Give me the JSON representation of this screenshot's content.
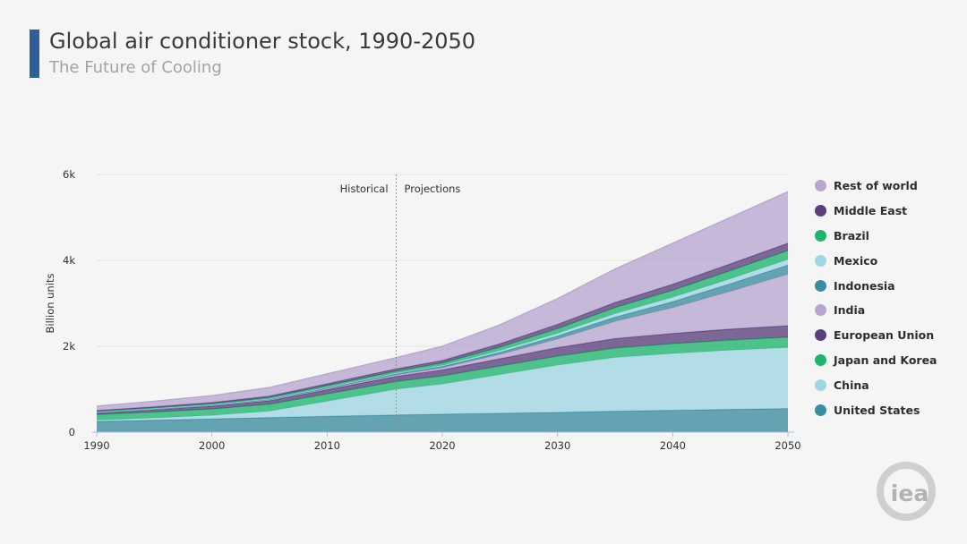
{
  "header": {
    "title": "Global air conditioner stock, 1990-2050",
    "subtitle": "The Future of Cooling"
  },
  "logo": {
    "text": "iea",
    "icon": "iea-logo-icon"
  },
  "chart_data": {
    "type": "area",
    "stacked": true,
    "x": [
      1990,
      1995,
      2000,
      2005,
      2010,
      2016,
      2020,
      2025,
      2030,
      2035,
      2040,
      2045,
      2050
    ],
    "xticks": [
      "1990",
      "2000",
      "2010",
      "2020",
      "2030",
      "2040",
      "2050"
    ],
    "yticks": [
      "0",
      "2k",
      "4k",
      "6k"
    ],
    "ylabel": "Billion units",
    "xlim": [
      1990,
      2050
    ],
    "ylim": [
      0,
      6000
    ],
    "grid": true,
    "legend_position": "right",
    "annotations": {
      "divider_year": 2016,
      "left_label": "Historical",
      "right_label": "Projections"
    },
    "series": [
      {
        "name": "United States",
        "color": "#3c8c9f",
        "values": [
          250,
          280,
          310,
          340,
          370,
          400,
          420,
          440,
          460,
          490,
          510,
          530,
          550
        ]
      },
      {
        "name": "China",
        "color": "#9fd6e3",
        "values": [
          30,
          50,
          80,
          150,
          350,
          600,
          700,
          900,
          1100,
          1250,
          1320,
          1380,
          1420
        ]
      },
      {
        "name": "Japan and Korea",
        "color": "#1fb46b",
        "values": [
          130,
          140,
          150,
          160,
          170,
          180,
          190,
          200,
          210,
          220,
          230,
          235,
          240
        ]
      },
      {
        "name": "European Union",
        "color": "#5a3f7c",
        "values": [
          50,
          60,
          70,
          85,
          100,
          120,
          140,
          170,
          200,
          220,
          240,
          255,
          270
        ]
      },
      {
        "name": "India",
        "color": "#b9a6cf",
        "values": [
          5,
          8,
          12,
          18,
          25,
          35,
          50,
          100,
          200,
          400,
          600,
          880,
          1200
        ]
      },
      {
        "name": "Indonesia",
        "color": "#3c8c9f",
        "values": [
          5,
          7,
          9,
          12,
          16,
          22,
          30,
          50,
          70,
          100,
          140,
          175,
          210
        ]
      },
      {
        "name": "Mexico",
        "color": "#9fd6e3",
        "values": [
          5,
          7,
          10,
          13,
          17,
          20,
          25,
          40,
          60,
          80,
          100,
          115,
          130
        ]
      },
      {
        "name": "Brazil",
        "color": "#1fb46b",
        "values": [
          10,
          15,
          20,
          28,
          35,
          45,
          55,
          80,
          110,
          140,
          165,
          190,
          210
        ]
      },
      {
        "name": "Middle East",
        "color": "#5a3f7c",
        "values": [
          20,
          25,
          30,
          35,
          45,
          55,
          60,
          80,
          100,
          120,
          140,
          160,
          170
        ]
      },
      {
        "name": "Rest of world",
        "color": "#b9a6cf",
        "values": [
          100,
          130,
          160,
          200,
          230,
          260,
          330,
          440,
          600,
          780,
          955,
          1080,
          1200
        ]
      }
    ]
  },
  "legend_order": [
    "Rest of world",
    "Middle East",
    "Brazil",
    "Mexico",
    "Indonesia",
    "India",
    "European Union",
    "Japan and Korea",
    "China",
    "United States"
  ]
}
